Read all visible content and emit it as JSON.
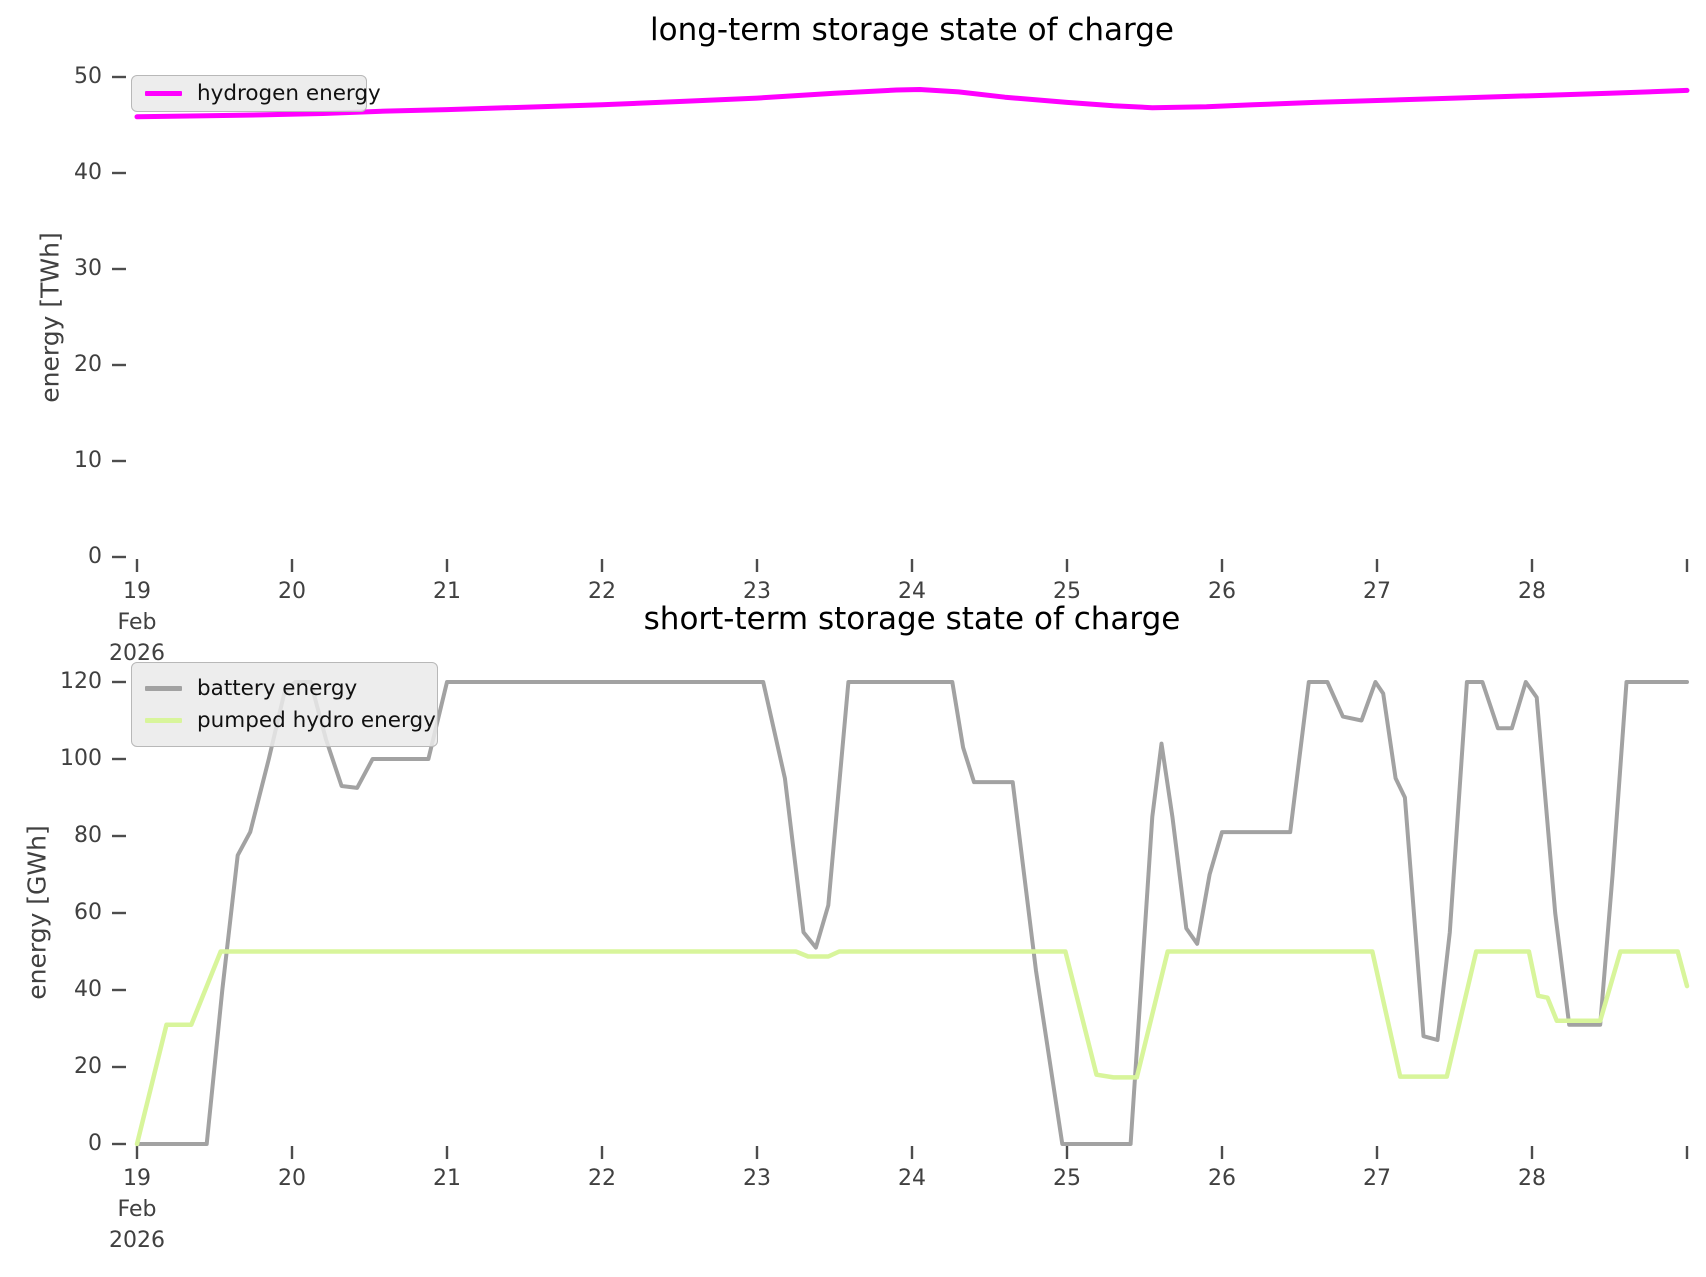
{
  "figure": {
    "background": "#ffffff",
    "tick_color": "#4d4d4d",
    "label_color": "#404040"
  },
  "chart_data": [
    {
      "type": "line",
      "title": "long-term storage state of charge",
      "ylabel": "energy [TWh]",
      "grid": false,
      "legend_position": "upper-left",
      "x_axis": {
        "min": 19,
        "max": 29,
        "ticks": [
          {
            "v": 19,
            "lines": [
              "19",
              "Feb",
              "2026"
            ]
          },
          {
            "v": 20,
            "lines": [
              "20"
            ]
          },
          {
            "v": 21,
            "lines": [
              "21"
            ]
          },
          {
            "v": 22,
            "lines": [
              "22"
            ]
          },
          {
            "v": 23,
            "lines": [
              "23"
            ]
          },
          {
            "v": 24,
            "lines": [
              "24"
            ]
          },
          {
            "v": 25,
            "lines": [
              "25"
            ]
          },
          {
            "v": 26,
            "lines": [
              "26"
            ]
          },
          {
            "v": 27,
            "lines": [
              "27"
            ]
          },
          {
            "v": 28,
            "lines": [
              "28"
            ]
          },
          {
            "v": 29,
            "lines": []
          }
        ]
      },
      "y_axis": {
        "min": 0,
        "max": 50,
        "ticks": [
          0,
          10,
          20,
          30,
          40,
          50
        ]
      },
      "legend": [
        {
          "label": "hydrogen energy",
          "color": "#ff00ff"
        }
      ],
      "series": [
        {
          "id": "hydrogen-energy",
          "name": "hydrogen energy",
          "color": "#ff00ff",
          "width": 5,
          "points": [
            [
              19.0,
              45.85
            ],
            [
              19.4,
              45.95
            ],
            [
              19.8,
              46.05
            ],
            [
              20.2,
              46.2
            ],
            [
              20.6,
              46.45
            ],
            [
              21.0,
              46.6
            ],
            [
              21.5,
              46.85
            ],
            [
              22.0,
              47.1
            ],
            [
              22.5,
              47.45
            ],
            [
              23.0,
              47.8
            ],
            [
              23.5,
              48.3
            ],
            [
              23.9,
              48.65
            ],
            [
              24.05,
              48.7
            ],
            [
              24.3,
              48.45
            ],
            [
              24.6,
              47.9
            ],
            [
              25.0,
              47.35
            ],
            [
              25.3,
              47.0
            ],
            [
              25.55,
              46.8
            ],
            [
              25.9,
              46.9
            ],
            [
              26.2,
              47.1
            ],
            [
              26.6,
              47.35
            ],
            [
              27.0,
              47.55
            ],
            [
              27.5,
              47.8
            ],
            [
              28.0,
              48.05
            ],
            [
              28.5,
              48.3
            ],
            [
              29.0,
              48.6
            ]
          ]
        }
      ]
    },
    {
      "type": "line",
      "title": "short-term storage state of charge",
      "ylabel": "energy [GWh]",
      "grid": false,
      "legend_position": "upper-left",
      "x_axis": {
        "min": 19,
        "max": 29,
        "ticks": [
          {
            "v": 19,
            "lines": [
              "19",
              "Feb",
              "2026"
            ]
          },
          {
            "v": 20,
            "lines": [
              "20"
            ]
          },
          {
            "v": 21,
            "lines": [
              "21"
            ]
          },
          {
            "v": 22,
            "lines": [
              "22"
            ]
          },
          {
            "v": 23,
            "lines": [
              "23"
            ]
          },
          {
            "v": 24,
            "lines": [
              "24"
            ]
          },
          {
            "v": 25,
            "lines": [
              "25"
            ]
          },
          {
            "v": 26,
            "lines": [
              "26"
            ]
          },
          {
            "v": 27,
            "lines": [
              "27"
            ]
          },
          {
            "v": 28,
            "lines": [
              "28"
            ]
          },
          {
            "v": 29,
            "lines": []
          }
        ]
      },
      "y_axis": {
        "min": 0,
        "max": 120,
        "ticks": [
          0,
          20,
          40,
          60,
          80,
          100,
          120
        ]
      },
      "legend": [
        {
          "label": "battery energy",
          "color": "#a2a2a2"
        },
        {
          "label": "pumped hydro energy",
          "color": "#d8f59b"
        }
      ],
      "series": [
        {
          "id": "battery-energy",
          "name": "battery energy",
          "color": "#a2a2a2",
          "width": 4,
          "points": [
            [
              19.0,
              0
            ],
            [
              19.45,
              0
            ],
            [
              19.55,
              40
            ],
            [
              19.65,
              75
            ],
            [
              19.73,
              81
            ],
            [
              19.85,
              100
            ],
            [
              19.95,
              117
            ],
            [
              20.02,
              120
            ],
            [
              20.12,
              120
            ],
            [
              20.22,
              105
            ],
            [
              20.32,
              93
            ],
            [
              20.42,
              92.5
            ],
            [
              20.52,
              100
            ],
            [
              20.88,
              100
            ],
            [
              21.0,
              120
            ],
            [
              23.04,
              120
            ],
            [
              23.18,
              95
            ],
            [
              23.3,
              55
            ],
            [
              23.38,
              51
            ],
            [
              23.46,
              62
            ],
            [
              23.59,
              120
            ],
            [
              24.26,
              120
            ],
            [
              24.33,
              103
            ],
            [
              24.4,
              94
            ],
            [
              24.65,
              94
            ],
            [
              24.8,
              45
            ],
            [
              24.97,
              0
            ],
            [
              25.41,
              0
            ],
            [
              25.55,
              85
            ],
            [
              25.61,
              104
            ],
            [
              25.68,
              85
            ],
            [
              25.77,
              56
            ],
            [
              25.84,
              52
            ],
            [
              25.92,
              70
            ],
            [
              26.0,
              81
            ],
            [
              26.44,
              81
            ],
            [
              26.56,
              120
            ],
            [
              26.68,
              120
            ],
            [
              26.78,
              111
            ],
            [
              26.9,
              110
            ],
            [
              26.99,
              120
            ],
            [
              27.04,
              117
            ],
            [
              27.12,
              95
            ],
            [
              27.18,
              90
            ],
            [
              27.3,
              28
            ],
            [
              27.39,
              27
            ],
            [
              27.47,
              55
            ],
            [
              27.58,
              120
            ],
            [
              27.68,
              120
            ],
            [
              27.78,
              108
            ],
            [
              27.87,
              108
            ],
            [
              27.96,
              120
            ],
            [
              28.03,
              116
            ],
            [
              28.15,
              60
            ],
            [
              28.24,
              31
            ],
            [
              28.44,
              31
            ],
            [
              28.52,
              70
            ],
            [
              28.61,
              120
            ],
            [
              29.0,
              120
            ]
          ]
        },
        {
          "id": "pumped-hydro-energy",
          "name": "pumped hydro energy",
          "color": "#d8f59b",
          "width": 4.5,
          "points": [
            [
              19.0,
              0
            ],
            [
              19.19,
              31
            ],
            [
              19.35,
              31
            ],
            [
              19.54,
              50
            ],
            [
              23.25,
              50
            ],
            [
              23.33,
              48.7
            ],
            [
              23.46,
              48.7
            ],
            [
              23.53,
              50
            ],
            [
              24.99,
              50
            ],
            [
              25.19,
              18
            ],
            [
              25.3,
              17.3
            ],
            [
              25.45,
              17.3
            ],
            [
              25.65,
              50
            ],
            [
              26.97,
              50
            ],
            [
              27.15,
              17.5
            ],
            [
              27.45,
              17.5
            ],
            [
              27.64,
              50
            ],
            [
              27.98,
              50
            ],
            [
              28.04,
              38.5
            ],
            [
              28.1,
              38
            ],
            [
              28.16,
              32
            ],
            [
              28.44,
              32
            ],
            [
              28.57,
              50
            ],
            [
              28.94,
              50
            ],
            [
              29.0,
              41
            ]
          ]
        }
      ]
    }
  ]
}
